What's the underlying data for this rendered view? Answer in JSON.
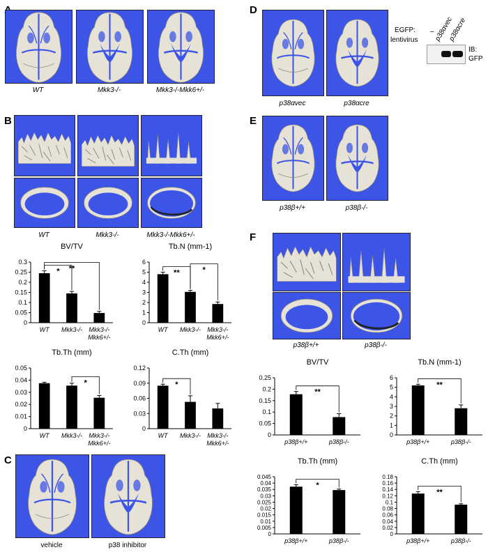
{
  "panels": {
    "A": {
      "letter": "A",
      "captions": [
        "WT",
        "Mkk3-/-",
        "Mkk3-/-Mkk6+/-"
      ]
    },
    "B": {
      "letter": "B",
      "captions": [
        "WT",
        "Mkk3-/-",
        "Mkk3-/-Mkk6+/-"
      ]
    },
    "C": {
      "letter": "C",
      "captions": [
        "vehicle",
        "p38 inhibitor"
      ]
    },
    "D": {
      "letter": "D",
      "captions": [
        "p38αvec",
        "p38αcre"
      ],
      "blot": {
        "row_label_1": "EGFP:",
        "row_label_2": "lentivirus",
        "lanes": [
          "–",
          "p38αvec",
          "p38αcre"
        ],
        "ib_1": "IB:",
        "ib_2": "GFP"
      }
    },
    "E": {
      "letter": "E",
      "captions": [
        "p38β+/+",
        "p38β-/-"
      ]
    },
    "F": {
      "letter": "F",
      "captions": [
        "p38β+/+",
        "p38β-/-"
      ]
    }
  },
  "colors": {
    "image_bg": "#3c55e6",
    "bone": "#e6e2d6",
    "bar": "#000000"
  },
  "chart_data": [
    {
      "id": "B-bvtv",
      "type": "bar",
      "title": "BV/TV",
      "categories": [
        "WT",
        "Mkk3-/-",
        "Mkk3-/-\nMkk6+/-"
      ],
      "values": [
        0.245,
        0.145,
        0.048
      ],
      "errors": [
        0.012,
        0.01,
        0.008
      ],
      "ylim": [
        0,
        0.3
      ],
      "yticks": [
        "0",
        "0.05",
        "0.1",
        "0.15",
        "0.2",
        "0.25",
        "0.3"
      ],
      "significance": [
        {
          "from": 0,
          "to": 1,
          "label": "*"
        },
        {
          "from": 0,
          "to": 2,
          "label": "**"
        }
      ]
    },
    {
      "id": "B-tbn",
      "type": "bar",
      "title": "Tb.N (mm-1)",
      "categories": [
        "WT",
        "Mkk3-/-",
        "Mkk3-/-\nMkk6+/-"
      ],
      "values": [
        4.8,
        3.05,
        1.85
      ],
      "errors": [
        0.2,
        0.15,
        0.2
      ],
      "ylim": [
        0,
        6
      ],
      "yticks": [
        "0",
        "1",
        "2",
        "3",
        "4",
        "5",
        "6"
      ],
      "significance": [
        {
          "from": 0,
          "to": 1,
          "label": "**"
        },
        {
          "from": 1,
          "to": 2,
          "label": "*"
        }
      ]
    },
    {
      "id": "B-tbth",
      "type": "bar",
      "title": "Tb.Th (mm)",
      "categories": [
        "WT",
        "Mkk3-/-",
        "Mkk3-/-\nMkk6+/-"
      ],
      "values": [
        0.0375,
        0.0355,
        0.0255
      ],
      "errors": [
        0.0008,
        0.002,
        0.0018
      ],
      "ylim": [
        0,
        0.05
      ],
      "yticks": [
        "0",
        "0.01",
        "0.02",
        "0.03",
        "0.04",
        "0.05"
      ],
      "significance": [
        {
          "from": 1,
          "to": 2,
          "label": "*"
        }
      ]
    },
    {
      "id": "B-cth",
      "type": "bar",
      "title": "C.Th (mm)",
      "categories": [
        "WT",
        "Mkk3-/-",
        "Mkk3-/-\nMkk6+/-"
      ],
      "values": [
        0.085,
        0.053,
        0.04
      ],
      "errors": [
        0.003,
        0.012,
        0.01
      ],
      "ylim": [
        0,
        0.12
      ],
      "yticks": [
        "0",
        "0.03",
        "0.06",
        "0.09",
        "0.12"
      ],
      "significance": [
        {
          "from": 0,
          "to": 1,
          "label": "*"
        }
      ]
    },
    {
      "id": "F-bvtv",
      "type": "bar",
      "title": "BV/TV",
      "categories": [
        "p38β+/+",
        "p38β-/-"
      ],
      "values": [
        0.178,
        0.078
      ],
      "errors": [
        0.012,
        0.015
      ],
      "ylim": [
        0,
        0.25
      ],
      "yticks": [
        "0",
        "0.05",
        "0.1",
        "0.15",
        "0.2",
        "0.25"
      ],
      "significance": [
        {
          "from": 0,
          "to": 1,
          "label": "**"
        }
      ]
    },
    {
      "id": "F-tbn",
      "type": "bar",
      "title": "Tb.N (mm-1)",
      "categories": [
        "p38β+/+",
        "p38β-/-"
      ],
      "values": [
        5.2,
        2.8
      ],
      "errors": [
        0.12,
        0.35
      ],
      "ylim": [
        0,
        6
      ],
      "yticks": [
        "0",
        "1",
        "2",
        "3",
        "4",
        "5",
        "6"
      ],
      "significance": [
        {
          "from": 0,
          "to": 1,
          "label": "**"
        }
      ]
    },
    {
      "id": "F-tbth",
      "type": "bar",
      "title": "Tb.Th (mm)",
      "categories": [
        "p38β+/+",
        "p38β-/-"
      ],
      "values": [
        0.0372,
        0.0345
      ],
      "errors": [
        0.0015,
        0.0008
      ],
      "ylim": [
        0,
        0.045
      ],
      "yticks": [
        "0",
        "0.005",
        "0.01",
        "0.015",
        "0.02",
        "0.025",
        "0.03",
        "0.035",
        "0.04",
        "0.045"
      ],
      "significance": [
        {
          "from": 0,
          "to": 1,
          "label": "*"
        }
      ]
    },
    {
      "id": "F-cth",
      "type": "bar",
      "title": "C.Th (mm)",
      "categories": [
        "p38β+/+",
        "p38β-/-"
      ],
      "values": [
        0.127,
        0.092
      ],
      "errors": [
        0.006,
        0.003
      ],
      "ylim": [
        0,
        0.18
      ],
      "yticks": [
        "0",
        "0.02",
        "0.04",
        "0.06",
        "0.08",
        "0.1",
        "0.12",
        "0.14",
        "0.16",
        "0.18"
      ],
      "significance": [
        {
          "from": 0,
          "to": 1,
          "label": "**"
        }
      ]
    }
  ]
}
